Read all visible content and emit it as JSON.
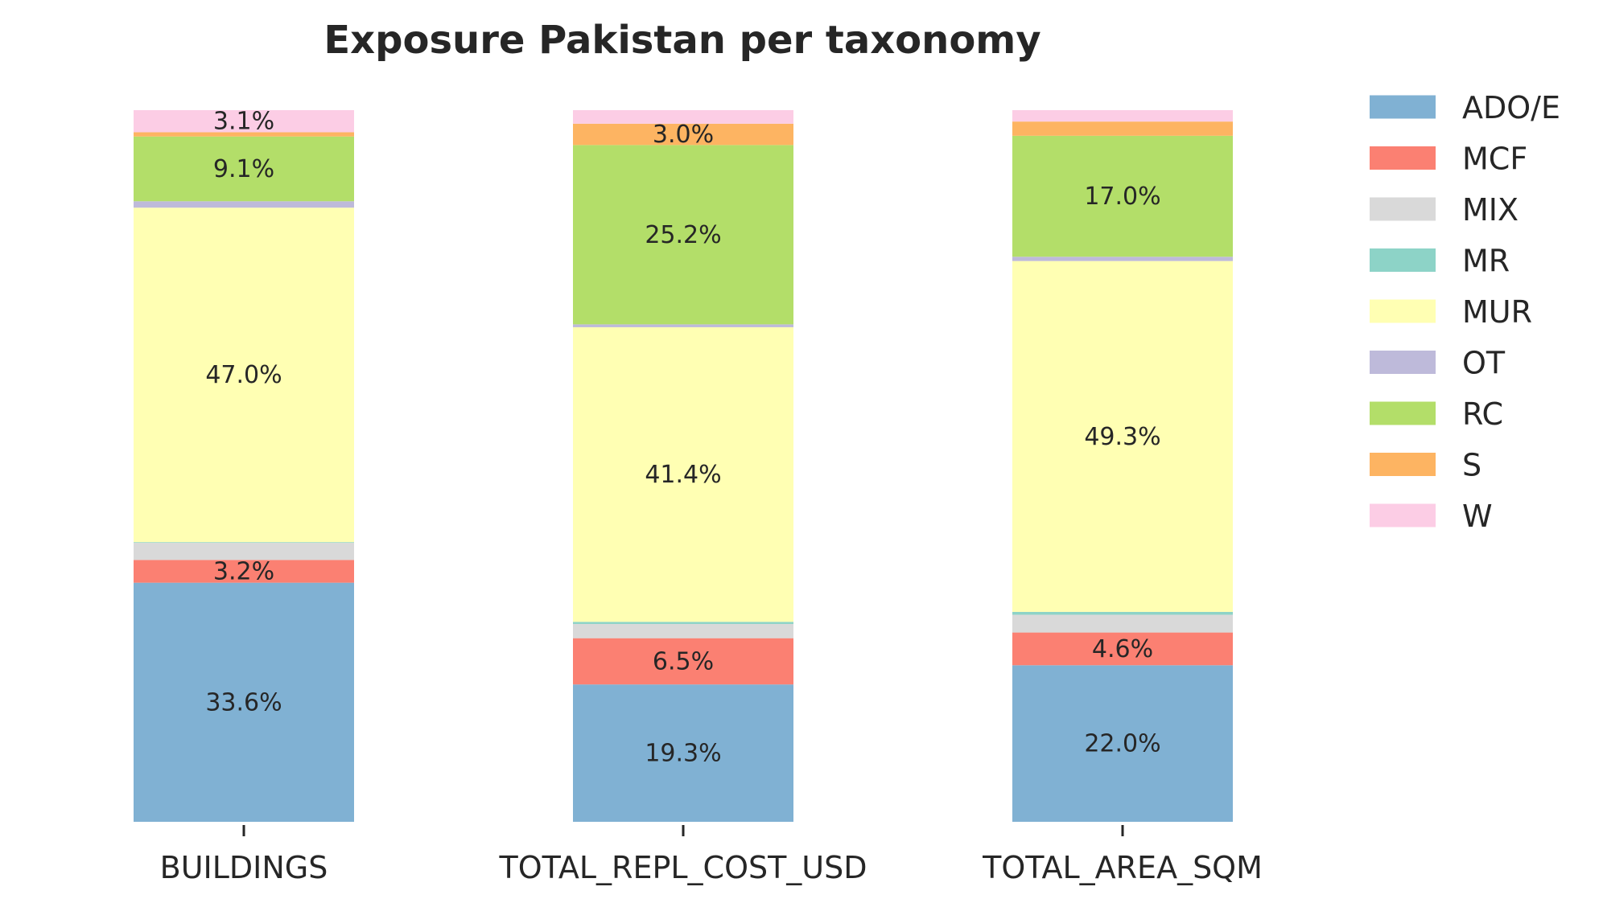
{
  "chart_data": {
    "type": "bar",
    "stacked": true,
    "normalized_percent": true,
    "title": "Exposure Pakistan per taxonomy",
    "xlabel": "",
    "ylabel": "",
    "ylim": [
      0,
      100
    ],
    "grid": false,
    "legend_position": "right",
    "categories": [
      "BUILDINGS",
      "TOTAL_REPL_COST_USD",
      "TOTAL_AREA_SQM"
    ],
    "series": [
      {
        "name": "ADO/E",
        "color": "#80b1d3",
        "values": [
          33.6,
          19.3,
          22.0
        ]
      },
      {
        "name": "MCF",
        "color": "#fb8072",
        "values": [
          3.2,
          6.5,
          4.6
        ]
      },
      {
        "name": "MIX",
        "color": "#d9d9d9",
        "values": [
          2.4,
          2.0,
          2.5
        ]
      },
      {
        "name": "MR",
        "color": "#8dd3c7",
        "values": [
          0.1,
          0.3,
          0.4
        ]
      },
      {
        "name": "MUR",
        "color": "#ffffb3",
        "values": [
          47.0,
          41.4,
          49.3
        ]
      },
      {
        "name": "OT",
        "color": "#bebada",
        "values": [
          0.9,
          0.4,
          0.6
        ]
      },
      {
        "name": "RC",
        "color": "#b3de69",
        "values": [
          9.1,
          25.2,
          17.0
        ]
      },
      {
        "name": "S",
        "color": "#fdb462",
        "values": [
          0.6,
          3.0,
          2.0
        ]
      },
      {
        "name": "W",
        "color": "#fccde5",
        "values": [
          3.1,
          1.9,
          1.6
        ]
      }
    ],
    "data_labels": [
      [
        "33.6%",
        "19.3%",
        "22.0%"
      ],
      [
        "3.2%",
        "6.5%",
        "4.6%"
      ],
      [
        "",
        "",
        ""
      ],
      [
        "",
        "",
        ""
      ],
      [
        "47.0%",
        "41.4%",
        "49.3%"
      ],
      [
        "",
        "",
        ""
      ],
      [
        "9.1%",
        "25.2%",
        "17.0%"
      ],
      [
        "",
        "3.0%",
        ""
      ],
      [
        "3.1%",
        "",
        ""
      ]
    ]
  }
}
